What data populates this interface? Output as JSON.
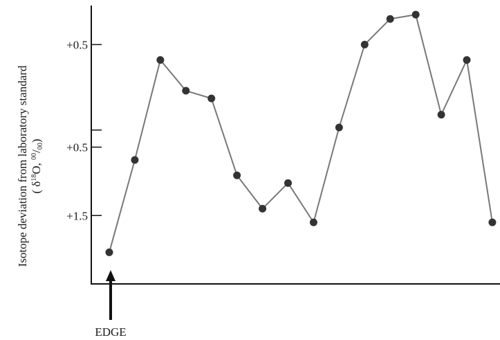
{
  "chart_data": {
    "type": "line",
    "ylabel_line1": "Isotope deviation from laboratory standard",
    "ylabel_line2_prefix": "( δ",
    "ylabel_line2_sup": "18",
    "ylabel_line2_mid": "O, ",
    "ylabel_line2_unit_sup": "00",
    "ylabel_line2_slash": "/",
    "ylabel_line2_unit_sub": "00",
    "ylabel_line2_suffix": ")",
    "xlabel": "",
    "ylim": [
      0,
      3.2
    ],
    "xlim": [
      0,
      15.3
    ],
    "y_ticks": [
      {
        "value": 2.8,
        "label": "+0.5"
      },
      {
        "value": 1.8,
        "label": ""
      },
      {
        "value": 1.6,
        "label": "+0.5"
      },
      {
        "value": 0.8,
        "label": "+1.5"
      }
    ],
    "series": [
      {
        "x": [
          0,
          1,
          2,
          3,
          4,
          5,
          6,
          7,
          8,
          9,
          10,
          11,
          12,
          13,
          14,
          15
        ],
        "y": [
          0.37,
          1.45,
          2.62,
          2.26,
          2.17,
          1.27,
          0.88,
          1.18,
          0.72,
          1.83,
          2.8,
          3.1,
          3.15,
          1.98,
          2.62,
          0.72
        ]
      }
    ],
    "annotation": "EDGE",
    "grid": false,
    "line_color": "#777777",
    "marker_color": "#333333"
  }
}
